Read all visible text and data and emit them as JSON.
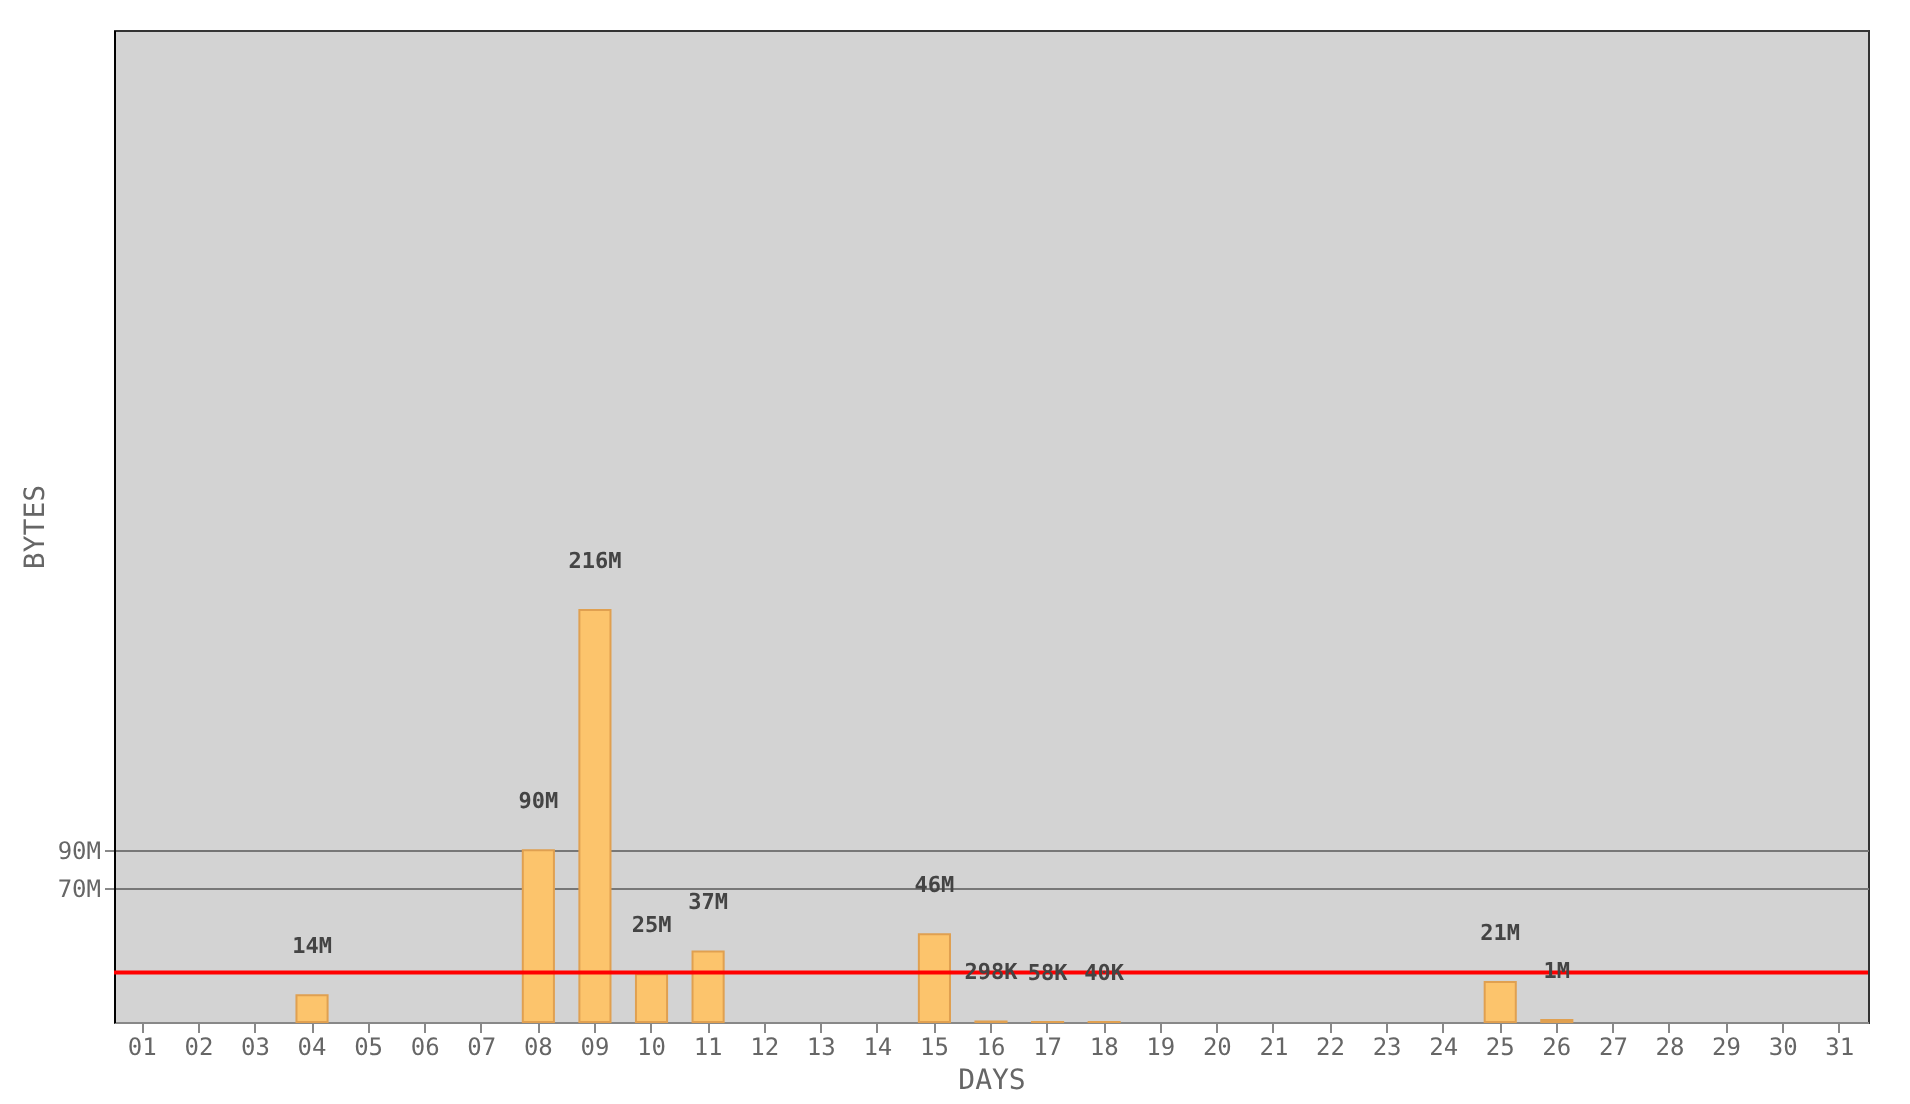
{
  "chart_data": {
    "type": "bar",
    "xlabel": "DAYS",
    "ylabel": "BYTES",
    "categories": [
      "01",
      "02",
      "03",
      "04",
      "05",
      "06",
      "07",
      "08",
      "09",
      "10",
      "11",
      "12",
      "13",
      "14",
      "15",
      "16",
      "17",
      "18",
      "19",
      "20",
      "21",
      "22",
      "23",
      "24",
      "25",
      "26",
      "27",
      "28",
      "29",
      "30",
      "31"
    ],
    "values": [
      null,
      null,
      null,
      14000000,
      null,
      null,
      null,
      90000000,
      216000000,
      25000000,
      37000000,
      null,
      null,
      null,
      46000000,
      298000,
      58000,
      40000,
      null,
      null,
      null,
      null,
      null,
      null,
      21000000,
      1000000,
      null,
      null,
      null,
      null,
      null
    ],
    "value_labels": [
      null,
      null,
      null,
      "14M",
      null,
      null,
      null,
      "90M",
      "216M",
      "25M",
      "37M",
      null,
      null,
      null,
      "46M",
      "298K",
      "58K",
      "40K",
      null,
      null,
      null,
      null,
      null,
      null,
      "21M",
      "1M",
      null,
      null,
      null,
      null,
      null
    ],
    "color": "#fcc46c",
    "ylim": [
      0,
      520000000
    ],
    "yticks": [
      {
        "value": 70000000,
        "label": "70M"
      },
      {
        "value": 90000000,
        "label": "90M"
      }
    ],
    "grid": "y",
    "ref_lines": [
      {
        "axis": "y",
        "value": 26000000,
        "color": "#ff0000"
      }
    ]
  }
}
